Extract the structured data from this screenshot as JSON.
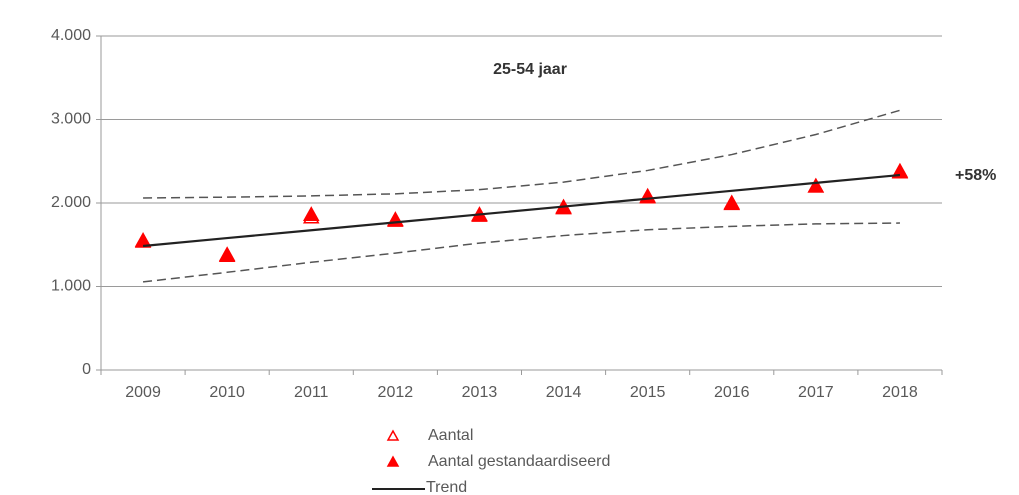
{
  "chart_data": {
    "type": "line",
    "annotations": [
      "25-54 jaar",
      "+58%"
    ],
    "categories": [
      "2009",
      "2010",
      "2011",
      "2012",
      "2013",
      "2014",
      "2015",
      "2016",
      "2017",
      "2018"
    ],
    "series": [
      {
        "name": "Aantal",
        "color": "#ff0000",
        "marker": "open-triangle",
        "values": [
          1540,
          1370,
          1830,
          1790,
          1850,
          1940,
          2070,
          1990,
          2200,
          2370
        ]
      },
      {
        "name": "Aantal gestandaardiseerd",
        "color": "#ff0000",
        "marker": "triangle",
        "values": [
          1550,
          1380,
          1860,
          1800,
          1860,
          1950,
          2080,
          2000,
          2200,
          2380
        ]
      },
      {
        "name": "Trend",
        "color": "#222222",
        "marker": "line",
        "values": [
          1485,
          1580,
          1674,
          1768,
          1863,
          1957,
          2052,
          2146,
          2241,
          2335
        ]
      },
      {
        "color": "#555555",
        "marker": "dashed",
        "values": [
          2060,
          2070,
          2085,
          2110,
          2160,
          2250,
          2390,
          2580,
          2820,
          3110
        ]
      },
      {
        "color": "#555555",
        "marker": "dashed",
        "values": [
          1055,
          1170,
          1290,
          1400,
          1520,
          1610,
          1680,
          1720,
          1750,
          1760
        ]
      }
    ],
    "ylim": [
      0,
      4000
    ],
    "yticks": [
      0,
      {
        "value": 1000,
        "label": "1.000"
      },
      {
        "value": 2000,
        "label": "2.000"
      },
      {
        "value": 3000,
        "label": "3.000"
      },
      {
        "value": 4000,
        "label": "4.000"
      }
    ],
    "grid": true
  }
}
